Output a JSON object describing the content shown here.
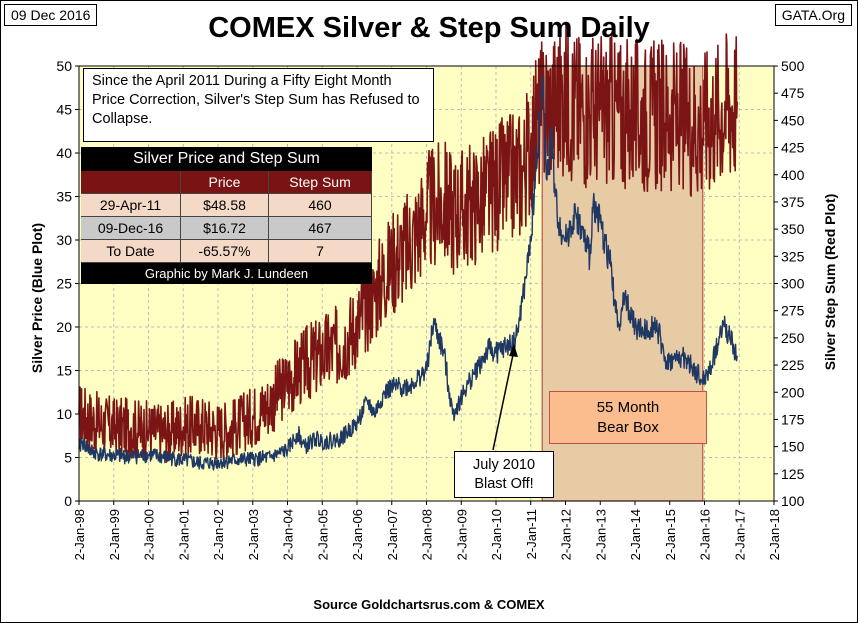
{
  "header": {
    "date": "09 Dec 2016",
    "site": "GATA.Org"
  },
  "footer": {
    "source": "Source Goldchartsrus.com & COMEX"
  },
  "annotations": {
    "note": "Since the April 2011 During a  Fifty Eight Month Price Correction, Silver's Step Sum has Refused to Collapse.",
    "bear_box": [
      "55 Month",
      "Bear Box"
    ],
    "blast_off": [
      "July 2010",
      "Blast Off!"
    ]
  },
  "table": {
    "title": "Silver Price and Step Sum",
    "headers": [
      "",
      "Price",
      "Step Sum"
    ],
    "rows": [
      [
        "29-Apr-11",
        "$48.58",
        "460"
      ],
      [
        "09-Dec-16",
        "$16.72",
        "467"
      ],
      [
        "To Date",
        "-65.57%",
        "7"
      ]
    ],
    "footer": "Graphic by Mark J. Lundeen"
  },
  "colors": {
    "plot_bg": "#ffffc4",
    "price_line": "#1f3864",
    "stepsum_line": "#7b1414",
    "bear_shade": "#e6cba4",
    "bear_border": "#c0504d",
    "grid": "#bdbdbd"
  },
  "chart_data": {
    "type": "line",
    "title": "COMEX Silver & Step Sum Daily",
    "ylabel_left": "Silver Price   (Blue Plot)",
    "ylabel_right": "Silver Step Sum   (Red Plot)",
    "x_ticks": [
      "2-Jan-98",
      "2-Jan-99",
      "2-Jan-00",
      "2-Jan-01",
      "2-Jan-02",
      "2-Jan-03",
      "2-Jan-04",
      "2-Jan-05",
      "2-Jan-06",
      "2-Jan-07",
      "2-Jan-08",
      "2-Jan-09",
      "2-Jan-10",
      "2-Jan-11",
      "2-Jan-12",
      "2-Jan-13",
      "2-Jan-14",
      "2-Jan-15",
      "2-Jan-16",
      "2-Jan-17",
      "2-Jan-18"
    ],
    "xlim": [
      1998,
      2018
    ],
    "ylim_left": [
      0,
      50
    ],
    "yticks_left": [
      0,
      5,
      10,
      15,
      20,
      25,
      30,
      35,
      40,
      45,
      50
    ],
    "ylim_right": [
      100,
      500
    ],
    "yticks_right": [
      100,
      125,
      150,
      175,
      200,
      225,
      250,
      275,
      300,
      325,
      350,
      375,
      400,
      425,
      450,
      475,
      500
    ],
    "bear_box_range": [
      2011.33,
      2015.95
    ],
    "series": [
      {
        "name": "Silver Price",
        "axis": "left",
        "x": [
          1998.0,
          1998.1,
          1998.3,
          1998.6,
          1999.0,
          1999.5,
          2000.0,
          2000.5,
          2001.0,
          2001.5,
          2001.9,
          2002.5,
          2003.0,
          2003.5,
          2004.0,
          2004.3,
          2004.5,
          2004.8,
          2005.0,
          2005.5,
          2006.0,
          2006.3,
          2006.5,
          2006.8,
          2007.0,
          2007.5,
          2008.0,
          2008.2,
          2008.5,
          2008.75,
          2008.9,
          2009.2,
          2009.5,
          2009.8,
          2010.0,
          2010.2,
          2010.5,
          2010.6,
          2010.8,
          2011.0,
          2011.15,
          2011.33,
          2011.45,
          2011.6,
          2011.7,
          2011.8,
          2012.0,
          2012.3,
          2012.7,
          2012.8,
          2013.0,
          2013.3,
          2013.5,
          2013.7,
          2014.0,
          2014.3,
          2014.6,
          2014.9,
          2015.0,
          2015.4,
          2015.9,
          2016.0,
          2016.2,
          2016.55,
          2016.7,
          2016.85,
          2016.94
        ],
        "values": [
          6.0,
          6.8,
          5.8,
          5.4,
          5.2,
          5.1,
          5.3,
          5.0,
          4.7,
          4.3,
          4.4,
          4.7,
          4.8,
          5.0,
          5.9,
          7.8,
          6.2,
          7.2,
          6.8,
          7.1,
          8.9,
          11.5,
          10.0,
          12.5,
          13.0,
          13.2,
          15.0,
          20.5,
          17.0,
          10.0,
          11.0,
          13.5,
          15.5,
          17.5,
          17.0,
          17.5,
          18.2,
          19.0,
          24.0,
          30.0,
          38.0,
          48.5,
          37.0,
          42.0,
          35.0,
          32.0,
          30.0,
          33.0,
          28.0,
          34.5,
          32.0,
          27.0,
          20.0,
          23.5,
          20.0,
          19.5,
          20.5,
          16.0,
          16.0,
          16.5,
          14.0,
          14.0,
          15.5,
          20.5,
          19.0,
          17.5,
          16.7
        ]
      },
      {
        "name": "Step Sum",
        "axis": "right",
        "x": [
          1998.0,
          1998.5,
          1999.0,
          1999.5,
          2000.0,
          2000.5,
          2001.0,
          2001.5,
          2002.0,
          2002.5,
          2003.0,
          2003.5,
          2004.0,
          2004.5,
          2005.0,
          2005.5,
          2006.0,
          2006.5,
          2007.0,
          2007.5,
          2008.0,
          2008.5,
          2008.75,
          2009.0,
          2009.5,
          2010.0,
          2010.5,
          2010.8,
          2011.0,
          2011.33,
          2011.6,
          2012.0,
          2012.5,
          2013.0,
          2013.5,
          2014.0,
          2014.5,
          2015.0,
          2015.5,
          2015.9,
          2016.0,
          2016.3,
          2016.6,
          2016.94
        ],
        "values": [
          180,
          172,
          168,
          167,
          165,
          163,
          168,
          170,
          165,
          168,
          178,
          190,
          210,
          225,
          235,
          243,
          262,
          290,
          320,
          335,
          365,
          375,
          365,
          368,
          375,
          388,
          398,
          405,
          430,
          460,
          465,
          470,
          460,
          460,
          458,
          455,
          455,
          455,
          452,
          445,
          450,
          455,
          465,
          467
        ]
      }
    ]
  }
}
